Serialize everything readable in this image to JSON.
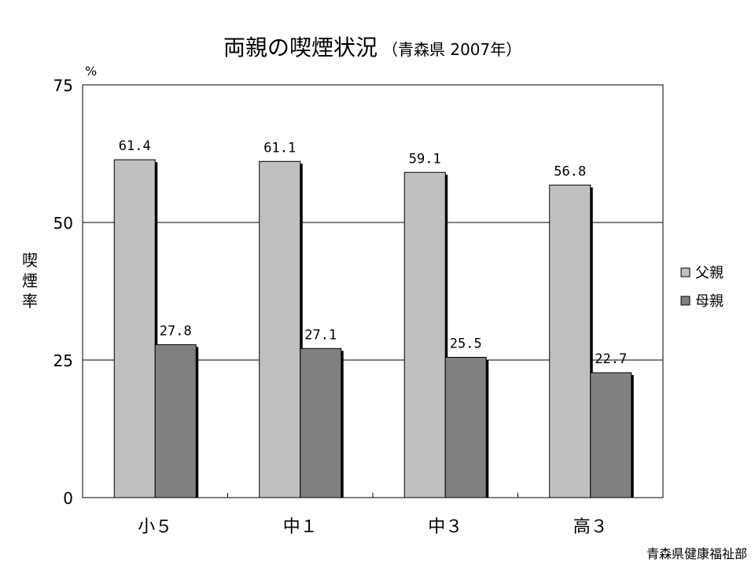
{
  "chart_data": {
    "type": "bar",
    "title": "両親の喫煙状況",
    "subtitle": "（青森県 2007年）",
    "ylabel": "喫煙率",
    "yunit": "%",
    "ylim": [
      0,
      75
    ],
    "yticks": [
      0,
      25,
      50,
      75
    ],
    "grid": true,
    "legend_position": "right",
    "categories": [
      "小５",
      "中１",
      "中３",
      "高３"
    ],
    "series": [
      {
        "name": "父親",
        "values": [
          61.4,
          61.1,
          59.1,
          56.8
        ],
        "color": "#c0c0c0"
      },
      {
        "name": "母親",
        "values": [
          27.8,
          27.1,
          25.5,
          22.7
        ],
        "color": "#808080"
      }
    ],
    "data_labels": [
      [
        "61.4",
        "61.1",
        "59.1",
        "56.8"
      ],
      [
        "27.8",
        "27.1",
        "25.5",
        "22.7"
      ]
    ],
    "source": "青森県健康福祉部"
  }
}
